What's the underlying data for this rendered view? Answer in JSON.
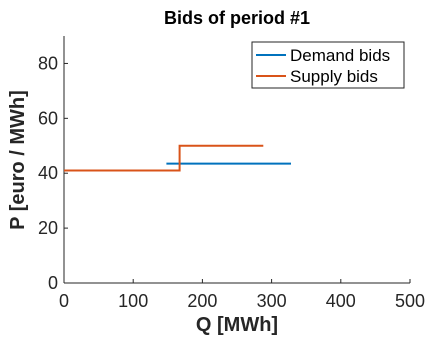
{
  "chart_data": {
    "type": "line",
    "title": "Bids of period #1",
    "xlabel": "Q [MWh]",
    "ylabel": "P [euro / MWh]",
    "xlim": [
      0,
      500
    ],
    "ylim": [
      0,
      90
    ],
    "xticks": [
      0,
      100,
      200,
      300,
      400,
      500
    ],
    "yticks": [
      0,
      20,
      40,
      60,
      80
    ],
    "grid": false,
    "legend_position": "top-right",
    "series": [
      {
        "name": "Demand bids",
        "color": "#0072BD",
        "step": true,
        "points": [
          [
            148,
            43.5
          ],
          [
            328,
            43.5
          ]
        ]
      },
      {
        "name": "Supply bids",
        "color": "#D95319",
        "step": true,
        "points": [
          [
            0,
            41
          ],
          [
            167,
            41
          ],
          [
            167,
            50
          ],
          [
            288,
            50
          ]
        ]
      }
    ]
  }
}
